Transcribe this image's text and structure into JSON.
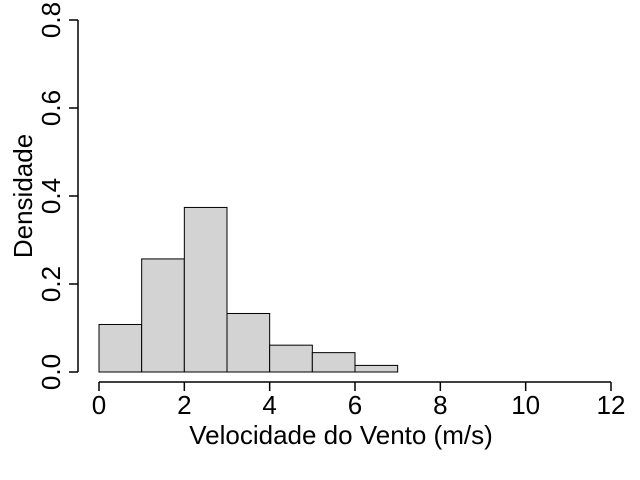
{
  "chart_data": {
    "type": "bar",
    "subtype": "histogram",
    "xlabel": "Velocidade do Vento (m/s)",
    "ylabel": "Densidade",
    "xlim": [
      0,
      12
    ],
    "ylim": [
      0,
      0.8
    ],
    "xticks": [
      0,
      2,
      4,
      6,
      8,
      10,
      12
    ],
    "xtick_labels": [
      "0",
      "2",
      "4",
      "6",
      "8",
      "10",
      "12"
    ],
    "yticks": [
      0.0,
      0.2,
      0.4,
      0.6,
      0.8
    ],
    "ytick_labels": [
      "0.0",
      "0.2",
      "0.4",
      "0.6",
      "0.8"
    ],
    "bins": [
      {
        "start": 0,
        "end": 1,
        "value": 0.108
      },
      {
        "start": 1,
        "end": 2,
        "value": 0.257
      },
      {
        "start": 2,
        "end": 3,
        "value": 0.374
      },
      {
        "start": 3,
        "end": 4,
        "value": 0.133
      },
      {
        "start": 4,
        "end": 5,
        "value": 0.061
      },
      {
        "start": 5,
        "end": 6,
        "value": 0.044
      },
      {
        "start": 6,
        "end": 7,
        "value": 0.015
      }
    ],
    "bar_color": "#d3d3d3",
    "bar_edge_color": "#000000",
    "grid": false,
    "legend": "none"
  }
}
